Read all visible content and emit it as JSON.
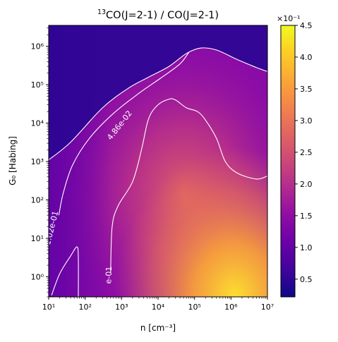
{
  "chart_data": {
    "type": "heatmap",
    "title": "CO(J=2-1) / CO(J=2-1)",
    "title_superscript": "13",
    "xlabel": "n [cm⁻³]",
    "ylabel": "G₀ [Habing]",
    "x_scale": "log",
    "y_scale": "log",
    "xlim": [
      10,
      10000000
    ],
    "ylim": [
      0.3,
      3500000
    ],
    "x_ticks": [
      {
        "value": 10,
        "label": "10¹"
      },
      {
        "value": 100,
        "label": "10²"
      },
      {
        "value": 1000,
        "label": "10³"
      },
      {
        "value": 10000,
        "label": "10⁴"
      },
      {
        "value": 100000,
        "label": "10⁵"
      },
      {
        "value": 1000000,
        "label": "10⁶"
      },
      {
        "value": 10000000,
        "label": "10⁷"
      }
    ],
    "y_ticks": [
      {
        "value": 1,
        "label": "10⁰"
      },
      {
        "value": 10,
        "label": "10¹"
      },
      {
        "value": 100,
        "label": "10²"
      },
      {
        "value": 1000,
        "label": "10³"
      },
      {
        "value": 10000,
        "label": "10⁴"
      },
      {
        "value": 100000,
        "label": "10⁵"
      },
      {
        "value": 1000000,
        "label": "10⁶"
      }
    ],
    "colorbar": {
      "colormap": "plasma",
      "range": [
        0.22,
        4.5
      ],
      "multiplier_label": "×10⁻¹",
      "ticks": [
        {
          "value": 0.5,
          "label": "0.5"
        },
        {
          "value": 1.0,
          "label": "1.0"
        },
        {
          "value": 1.5,
          "label": "1.5"
        },
        {
          "value": 2.0,
          "label": "2.0"
        },
        {
          "value": 2.5,
          "label": "2.5"
        },
        {
          "value": 3.0,
          "label": "3.0"
        },
        {
          "value": 3.5,
          "label": "3.5"
        },
        {
          "value": 4.0,
          "label": "4.0"
        },
        {
          "value": 4.5,
          "label": "4.5"
        }
      ]
    },
    "contours": [
      {
        "label": "4.86e-02",
        "points": [
          [
            10,
            1100
          ],
          [
            40,
            3200
          ],
          [
            300,
            25000
          ],
          [
            1500,
            80000
          ],
          [
            5000,
            150000
          ],
          [
            20000,
            300000
          ],
          [
            60000,
            650000
          ],
          [
            150000,
            900000
          ],
          [
            400000,
            800000
          ],
          [
            1500000,
            450000
          ],
          [
            5000000,
            280000
          ],
          [
            10000000,
            220000
          ]
        ]
      },
      {
        "label": "1.02e-01",
        "points": [
          [
            19,
            40
          ],
          [
            25,
            150
          ],
          [
            45,
            800
          ],
          [
            130,
            4000
          ],
          [
            600,
            18000
          ],
          [
            3000,
            60000
          ],
          [
            12000,
            150000
          ],
          [
            40000,
            350000
          ],
          [
            70000,
            700000
          ]
        ]
      },
      {
        "label": "",
        "points": [
          [
            12,
            0.33
          ],
          [
            20,
            1.2
          ],
          [
            40,
            3.5
          ],
          [
            60,
            6
          ],
          [
            65,
            3
          ],
          [
            65,
            0.3
          ]
        ]
      },
      {
        "label": "e-01",
        "points": [
          [
            500,
            1.3
          ],
          [
            550,
            20
          ],
          [
            800,
            70
          ],
          [
            2000,
            300
          ],
          [
            3500,
            2000
          ],
          [
            5500,
            13000
          ],
          [
            10000,
            30000
          ],
          [
            20000,
            42000
          ],
          [
            30000,
            40000
          ],
          [
            60000,
            25000
          ],
          [
            120000,
            20000
          ],
          [
            200000,
            12000
          ],
          [
            400000,
            4000
          ],
          [
            700000,
            1000
          ],
          [
            1500000,
            500
          ],
          [
            5000000,
            350
          ],
          [
            10000000,
            420
          ]
        ]
      }
    ]
  }
}
